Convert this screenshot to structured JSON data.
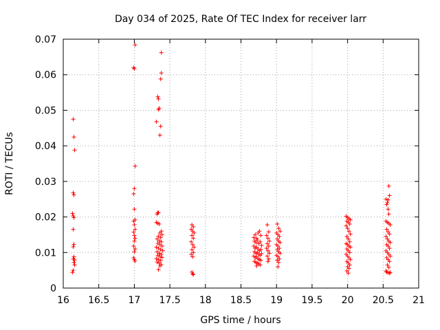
{
  "chart_data": {
    "type": "scatter",
    "title": "Day 034 of 2025, Rate Of TEC Index for receiver larr",
    "xlabel": "GPS time / hours",
    "ylabel": "ROTI / TECUs",
    "xlim": [
      16,
      21
    ],
    "ylim": [
      0,
      0.07
    ],
    "xticks": [
      "16",
      "16.5",
      "17",
      "17.5",
      "18",
      "18.5",
      "19",
      "19.5",
      "20",
      "20.5",
      "21"
    ],
    "yticks": [
      "0",
      "0.01",
      "0.02",
      "0.03",
      "0.04",
      "0.05",
      "0.06",
      "0.07"
    ],
    "xtick_values": [
      16,
      16.5,
      17,
      17.5,
      18,
      18.5,
      19,
      19.5,
      20,
      20.5,
      21
    ],
    "ytick_values": [
      0,
      0.01,
      0.02,
      0.03,
      0.04,
      0.05,
      0.06,
      0.07
    ],
    "grid": true,
    "marker": "+",
    "color": "#ff0000",
    "series": [
      {
        "name": "ROTI",
        "points": [
          [
            16.14,
            0.0475
          ],
          [
            16.15,
            0.0425
          ],
          [
            16.16,
            0.0388
          ],
          [
            16.14,
            0.0268
          ],
          [
            16.15,
            0.0262
          ],
          [
            16.13,
            0.021
          ],
          [
            16.14,
            0.0203
          ],
          [
            16.15,
            0.0198
          ],
          [
            16.14,
            0.0165
          ],
          [
            16.15,
            0.0123
          ],
          [
            16.14,
            0.0116
          ],
          [
            16.15,
            0.0088
          ],
          [
            16.14,
            0.0082
          ],
          [
            16.16,
            0.0079
          ],
          [
            16.15,
            0.0072
          ],
          [
            16.16,
            0.0065
          ],
          [
            16.14,
            0.005
          ],
          [
            16.13,
            0.0044
          ],
          [
            17.01,
            0.0684
          ],
          [
            16.99,
            0.062
          ],
          [
            17.0,
            0.0617
          ],
          [
            17.01,
            0.0343
          ],
          [
            17.0,
            0.028
          ],
          [
            16.99,
            0.0265
          ],
          [
            17.0,
            0.0222
          ],
          [
            17.01,
            0.0192
          ],
          [
            16.99,
            0.0188
          ],
          [
            17.0,
            0.0178
          ],
          [
            17.01,
            0.0165
          ],
          [
            16.99,
            0.0157
          ],
          [
            17.0,
            0.0148
          ],
          [
            17.01,
            0.014
          ],
          [
            17.0,
            0.0132
          ],
          [
            16.99,
            0.0118
          ],
          [
            17.01,
            0.011
          ],
          [
            17.0,
            0.0102
          ],
          [
            16.99,
            0.0085
          ],
          [
            17.0,
            0.008
          ],
          [
            17.01,
            0.0076
          ],
          [
            17.38,
            0.0662
          ],
          [
            17.38,
            0.0605
          ],
          [
            17.37,
            0.0588
          ],
          [
            17.33,
            0.0538
          ],
          [
            17.34,
            0.0532
          ],
          [
            17.35,
            0.0506
          ],
          [
            17.34,
            0.0502
          ],
          [
            17.31,
            0.0468
          ],
          [
            17.37,
            0.0455
          ],
          [
            17.36,
            0.043
          ],
          [
            17.33,
            0.0212
          ],
          [
            17.32,
            0.0208
          ],
          [
            17.34,
            0.0212
          ],
          [
            17.31,
            0.0185
          ],
          [
            17.33,
            0.0182
          ],
          [
            17.35,
            0.018
          ],
          [
            17.38,
            0.016
          ],
          [
            17.36,
            0.0155
          ],
          [
            17.39,
            0.015
          ],
          [
            17.34,
            0.0146
          ],
          [
            17.37,
            0.0142
          ],
          [
            17.32,
            0.0138
          ],
          [
            17.35,
            0.0133
          ],
          [
            17.38,
            0.013
          ],
          [
            17.33,
            0.0126
          ],
          [
            17.36,
            0.0122
          ],
          [
            17.39,
            0.0118
          ],
          [
            17.31,
            0.0115
          ],
          [
            17.34,
            0.0112
          ],
          [
            17.37,
            0.0108
          ],
          [
            17.4,
            0.0105
          ],
          [
            17.32,
            0.0102
          ],
          [
            17.35,
            0.0098
          ],
          [
            17.38,
            0.0095
          ],
          [
            17.33,
            0.0092
          ],
          [
            17.36,
            0.0089
          ],
          [
            17.39,
            0.0086
          ],
          [
            17.31,
            0.0083
          ],
          [
            17.34,
            0.008
          ],
          [
            17.37,
            0.0077
          ],
          [
            17.32,
            0.0073
          ],
          [
            17.35,
            0.007
          ],
          [
            17.38,
            0.0066
          ],
          [
            17.36,
            0.0062
          ],
          [
            17.34,
            0.0052
          ],
          [
            17.81,
            0.0178
          ],
          [
            17.83,
            0.0172
          ],
          [
            17.8,
            0.0165
          ],
          [
            17.82,
            0.016
          ],
          [
            17.84,
            0.0155
          ],
          [
            17.81,
            0.0148
          ],
          [
            17.83,
            0.014
          ],
          [
            17.8,
            0.013
          ],
          [
            17.82,
            0.0122
          ],
          [
            17.84,
            0.0115
          ],
          [
            17.81,
            0.0108
          ],
          [
            17.83,
            0.01
          ],
          [
            17.8,
            0.0095
          ],
          [
            17.82,
            0.0088
          ],
          [
            17.81,
            0.0045
          ],
          [
            17.82,
            0.004
          ],
          [
            17.83,
            0.0038
          ],
          [
            18.68,
            0.0142
          ],
          [
            18.7,
            0.015
          ],
          [
            18.72,
            0.014
          ],
          [
            18.74,
            0.0155
          ],
          [
            18.76,
            0.016
          ],
          [
            18.78,
            0.0148
          ],
          [
            18.69,
            0.0132
          ],
          [
            18.71,
            0.0128
          ],
          [
            18.73,
            0.0135
          ],
          [
            18.75,
            0.0125
          ],
          [
            18.77,
            0.013
          ],
          [
            18.79,
            0.012
          ],
          [
            18.68,
            0.0118
          ],
          [
            18.7,
            0.0112
          ],
          [
            18.72,
            0.0115
          ],
          [
            18.74,
            0.011
          ],
          [
            18.76,
            0.0105
          ],
          [
            18.78,
            0.0108
          ],
          [
            18.69,
            0.0102
          ],
          [
            18.71,
            0.0098
          ],
          [
            18.73,
            0.01
          ],
          [
            18.75,
            0.0095
          ],
          [
            18.77,
            0.0092
          ],
          [
            18.79,
            0.0097
          ],
          [
            18.68,
            0.009
          ],
          [
            18.7,
            0.0085
          ],
          [
            18.72,
            0.0088
          ],
          [
            18.74,
            0.0082
          ],
          [
            18.76,
            0.008
          ],
          [
            18.78,
            0.0078
          ],
          [
            18.69,
            0.0075
          ],
          [
            18.71,
            0.0072
          ],
          [
            18.73,
            0.007
          ],
          [
            18.75,
            0.0068
          ],
          [
            18.77,
            0.0065
          ],
          [
            18.72,
            0.0062
          ],
          [
            18.87,
            0.0178
          ],
          [
            18.89,
            0.0158
          ],
          [
            18.86,
            0.0148
          ],
          [
            18.88,
            0.014
          ],
          [
            18.9,
            0.0132
          ],
          [
            18.87,
            0.0125
          ],
          [
            18.89,
            0.0118
          ],
          [
            18.86,
            0.0112
          ],
          [
            18.88,
            0.0105
          ],
          [
            18.9,
            0.0098
          ],
          [
            18.87,
            0.009
          ],
          [
            18.89,
            0.0082
          ],
          [
            18.88,
            0.0075
          ],
          [
            19.01,
            0.018
          ],
          [
            19.03,
            0.0168
          ],
          [
            19.05,
            0.016
          ],
          [
            19.0,
            0.0155
          ],
          [
            19.02,
            0.015
          ],
          [
            19.04,
            0.0145
          ],
          [
            19.01,
            0.0138
          ],
          [
            19.03,
            0.0132
          ],
          [
            19.05,
            0.0128
          ],
          [
            19.0,
            0.0122
          ],
          [
            19.02,
            0.0118
          ],
          [
            19.04,
            0.0112
          ],
          [
            19.01,
            0.0108
          ],
          [
            19.03,
            0.0102
          ],
          [
            19.05,
            0.0098
          ],
          [
            19.0,
            0.0092
          ],
          [
            19.02,
            0.0088
          ],
          [
            19.04,
            0.0082
          ],
          [
            19.01,
            0.0078
          ],
          [
            19.03,
            0.0072
          ],
          [
            19.02,
            0.006
          ],
          [
            19.98,
            0.0202
          ],
          [
            20.0,
            0.0198
          ],
          [
            20.02,
            0.0195
          ],
          [
            20.04,
            0.0192
          ],
          [
            19.99,
            0.0188
          ],
          [
            20.01,
            0.0185
          ],
          [
            20.03,
            0.018
          ],
          [
            19.98,
            0.0175
          ],
          [
            20.0,
            0.0168
          ],
          [
            20.02,
            0.016
          ],
          [
            20.04,
            0.0152
          ],
          [
            19.99,
            0.0145
          ],
          [
            20.01,
            0.0138
          ],
          [
            20.03,
            0.013
          ],
          [
            19.98,
            0.0125
          ],
          [
            20.0,
            0.0122
          ],
          [
            20.02,
            0.0118
          ],
          [
            20.04,
            0.0115
          ],
          [
            19.99,
            0.011
          ],
          [
            20.01,
            0.0105
          ],
          [
            20.03,
            0.01
          ],
          [
            19.98,
            0.0095
          ],
          [
            20.0,
            0.009
          ],
          [
            20.02,
            0.0085
          ],
          [
            20.04,
            0.008
          ],
          [
            19.99,
            0.0075
          ],
          [
            20.01,
            0.007
          ],
          [
            20.03,
            0.0065
          ],
          [
            20.0,
            0.006
          ],
          [
            20.02,
            0.0055
          ],
          [
            19.99,
            0.0048
          ],
          [
            20.01,
            0.0042
          ],
          [
            20.54,
            0.025
          ],
          [
            20.57,
            0.0248
          ],
          [
            20.58,
            0.0287
          ],
          [
            20.59,
            0.026
          ],
          [
            20.56,
            0.024
          ],
          [
            20.55,
            0.0235
          ],
          [
            20.57,
            0.0222
          ],
          [
            20.58,
            0.0208
          ],
          [
            20.54,
            0.0188
          ],
          [
            20.56,
            0.0185
          ],
          [
            20.58,
            0.0182
          ],
          [
            20.6,
            0.0178
          ],
          [
            20.55,
            0.0165
          ],
          [
            20.57,
            0.0158
          ],
          [
            20.59,
            0.0152
          ],
          [
            20.54,
            0.0145
          ],
          [
            20.56,
            0.0138
          ],
          [
            20.58,
            0.0132
          ],
          [
            20.6,
            0.0128
          ],
          [
            20.55,
            0.0122
          ],
          [
            20.57,
            0.0118
          ],
          [
            20.59,
            0.0112
          ],
          [
            20.54,
            0.0105
          ],
          [
            20.56,
            0.01
          ],
          [
            20.58,
            0.0095
          ],
          [
            20.6,
            0.009
          ],
          [
            20.55,
            0.0085
          ],
          [
            20.57,
            0.008
          ],
          [
            20.59,
            0.0075
          ],
          [
            20.56,
            0.0065
          ],
          [
            20.58,
            0.0058
          ],
          [
            20.54,
            0.0048
          ],
          [
            20.55,
            0.0045
          ],
          [
            20.57,
            0.0043
          ],
          [
            20.59,
            0.0042
          ],
          [
            20.6,
            0.0044
          ]
        ]
      }
    ]
  }
}
